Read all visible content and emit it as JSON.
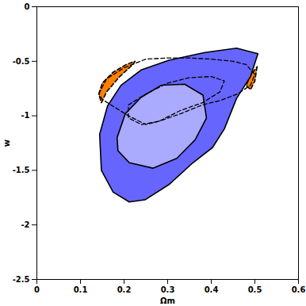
{
  "chart_data": {
    "type": "contour",
    "x_label": "Ωm",
    "y_label": "w",
    "xlim": [
      0,
      0.6
    ],
    "ylim": [
      -2.5,
      0
    ],
    "xticks": [
      0,
      0.1,
      0.2,
      0.3,
      0.4,
      0.5,
      0.6
    ],
    "yticks": [
      -2.5,
      -2,
      -1.5,
      -1,
      -0.5,
      0
    ],
    "grid": false,
    "series": [
      {
        "type": "area",
        "color": "#ff8000",
        "line_style": "dashed",
        "x": [
          0.142,
          0.15,
          0.175,
          0.205,
          0.225,
          0.22,
          0.19,
          0.16,
          0.148
        ],
        "y": [
          -0.8,
          -0.7,
          -0.6,
          -0.53,
          -0.5,
          -0.53,
          -0.64,
          -0.78,
          -0.88
        ]
      },
      {
        "type": "area",
        "color": "#ff8000",
        "line_style": "dashed",
        "x": [
          0.505,
          0.5,
          0.49,
          0.48,
          0.49
        ],
        "y": [
          -0.55,
          -0.68,
          -0.76,
          -0.72,
          -0.63
        ]
      },
      {
        "type": "area",
        "color": "#6666ff",
        "line_style": "solid",
        "x": [
          0.144,
          0.162,
          0.193,
          0.239,
          0.303,
          0.385,
          0.458,
          0.507,
          0.49,
          0.458,
          0.43,
          0.403,
          0.358,
          0.303,
          0.248,
          0.212,
          0.175,
          0.148
        ],
        "y": [
          -1.17,
          -0.91,
          -0.72,
          -0.58,
          -0.49,
          -0.42,
          -0.38,
          -0.43,
          -0.64,
          -0.84,
          -1.12,
          -1.29,
          -1.43,
          -1.63,
          -1.77,
          -1.79,
          -1.7,
          -1.5
        ]
      },
      {
        "type": "area",
        "color": "#aaaaff",
        "line_style": "solid",
        "x": [
          0.184,
          0.203,
          0.239,
          0.285,
          0.339,
          0.381,
          0.389,
          0.363,
          0.321,
          0.266,
          0.212,
          0.186
        ],
        "y": [
          -1.2,
          -0.98,
          -0.83,
          -0.72,
          -0.71,
          -0.81,
          -1.02,
          -1.22,
          -1.39,
          -1.48,
          -1.43,
          -1.32
        ]
      },
      {
        "type": "line",
        "color": "#000000",
        "line_style": "dashed",
        "x": [
          0.142,
          0.16,
          0.2,
          0.25,
          0.3,
          0.35,
          0.4,
          0.45,
          0.48,
          0.5,
          0.49,
          0.46,
          0.42,
          0.38,
          0.33,
          0.28,
          0.25,
          0.21,
          0.17,
          0.15
        ],
        "y": [
          -0.8,
          -0.66,
          -0.56,
          -0.48,
          -0.47,
          -0.47,
          -0.48,
          -0.5,
          -0.53,
          -0.62,
          -0.72,
          -0.8,
          -0.86,
          -0.9,
          -0.98,
          -1.05,
          -1.08,
          -1.0,
          -0.9,
          -0.85
        ]
      },
      {
        "type": "line",
        "color": "#000000",
        "line_style": "dashed",
        "x": [
          0.21,
          0.25,
          0.3,
          0.35,
          0.4,
          0.43,
          0.42,
          0.38,
          0.33,
          0.28,
          0.24,
          0.21
        ],
        "y": [
          -0.9,
          -0.8,
          -0.7,
          -0.65,
          -0.64,
          -0.68,
          -0.78,
          -0.88,
          -0.95,
          -1.05,
          -1.08,
          -1.02
        ]
      }
    ]
  }
}
